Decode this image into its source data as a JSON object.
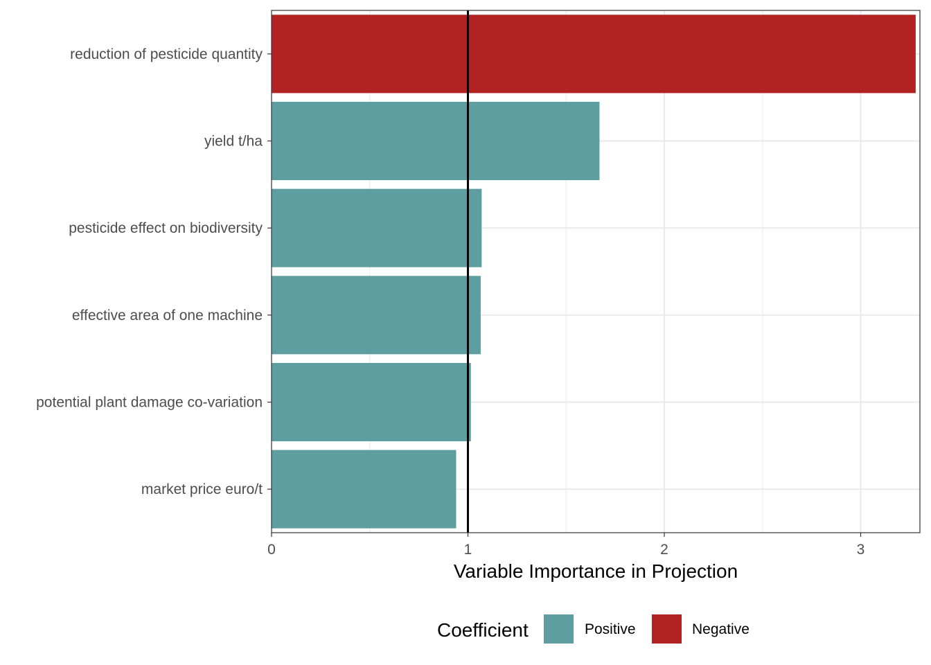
{
  "chart_data": {
    "type": "bar",
    "orientation": "horizontal",
    "categories": [
      "reduction of pesticide quantity",
      "yield t/ha",
      "pesticide effect on biodiversity",
      "effective area of one machine",
      "potential plant damage co-variation",
      "market price euro/t"
    ],
    "values": [
      3.28,
      1.67,
      1.07,
      1.065,
      1.015,
      0.94
    ],
    "coefficient": [
      "Negative",
      "Positive",
      "Positive",
      "Positive",
      "Positive",
      "Positive"
    ],
    "xlabel": "Variable Importance in Projection",
    "ylabel": "",
    "title": "",
    "xlim": [
      0,
      3.3
    ],
    "xticks": [
      "0",
      "1",
      "2",
      "3"
    ],
    "reference_line": 1,
    "grid": true,
    "legend": {
      "title": "Coefficient",
      "position": "bottom",
      "items": [
        {
          "label": "Positive",
          "color": "#5f9ea0"
        },
        {
          "label": "Negative",
          "color": "#b22222"
        }
      ]
    },
    "colors": {
      "Positive": "#5f9ea0",
      "Negative": "#b22222"
    }
  }
}
